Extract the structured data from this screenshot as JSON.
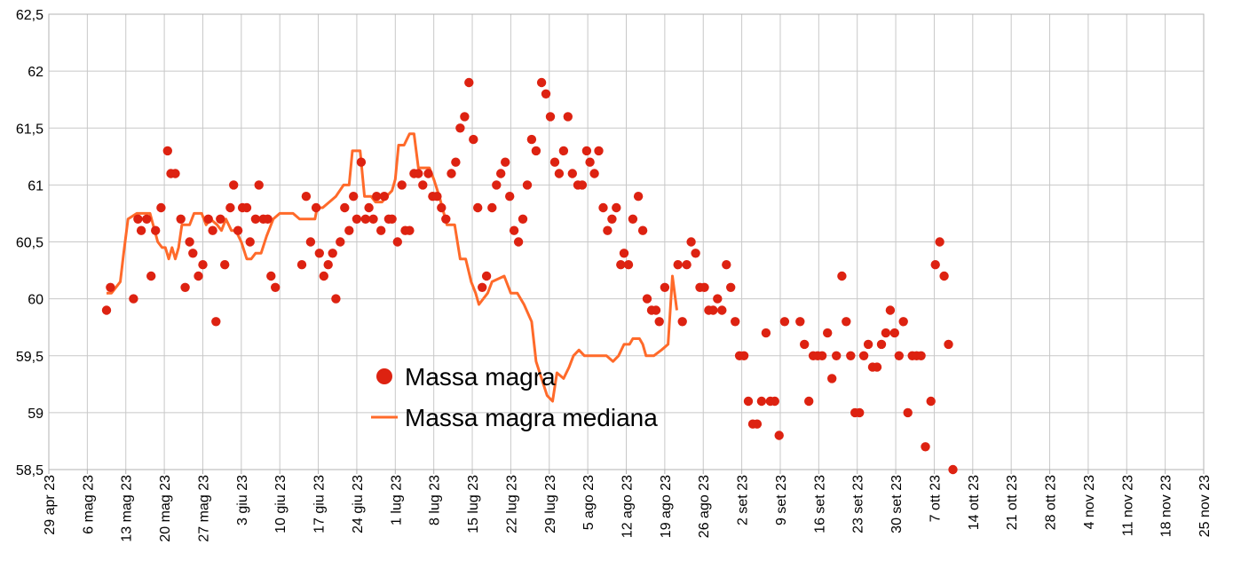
{
  "chart_data": {
    "type": "scatter",
    "title": "",
    "xlabel": "",
    "ylabel": "",
    "ylim": [
      58.5,
      62.5
    ],
    "yticks": [
      "58,5",
      "59",
      "59,5",
      "60",
      "60,5",
      "61",
      "61,5",
      "62",
      "62,5"
    ],
    "xlim_days": [
      0,
      210
    ],
    "xticks": [
      {
        "day": 0,
        "label": "29 apr 23"
      },
      {
        "day": 7,
        "label": "6 mag 23"
      },
      {
        "day": 14,
        "label": "13 mag 23"
      },
      {
        "day": 21,
        "label": "20 mag 23"
      },
      {
        "day": 28,
        "label": "27 mag 23"
      },
      {
        "day": 35,
        "label": "3 giu 23"
      },
      {
        "day": 42,
        "label": "10 giu 23"
      },
      {
        "day": 49,
        "label": "17 giu 23"
      },
      {
        "day": 56,
        "label": "24 giu 23"
      },
      {
        "day": 63,
        "label": "1 lug 23"
      },
      {
        "day": 70,
        "label": "8 lug 23"
      },
      {
        "day": 77,
        "label": "15 lug 23"
      },
      {
        "day": 84,
        "label": "22 lug 23"
      },
      {
        "day": 91,
        "label": "29 lug 23"
      },
      {
        "day": 98,
        "label": "5 ago 23"
      },
      {
        "day": 105,
        "label": "12 ago 23"
      },
      {
        "day": 112,
        "label": "19 ago 23"
      },
      {
        "day": 119,
        "label": "26 ago 23"
      },
      {
        "day": 126,
        "label": "2 set 23"
      },
      {
        "day": 133,
        "label": "9 set 23"
      },
      {
        "day": 140,
        "label": "16 set 23"
      },
      {
        "day": 147,
        "label": "23 set 23"
      },
      {
        "day": 154,
        "label": "30 set 23"
      },
      {
        "day": 161,
        "label": "7 ott 23"
      },
      {
        "day": 168,
        "label": "14 ott 23"
      },
      {
        "day": 175,
        "label": "21 ott 23"
      },
      {
        "day": 182,
        "label": "28 ott 23"
      },
      {
        "day": 189,
        "label": "4 nov 23"
      },
      {
        "day": 196,
        "label": "11 nov 23"
      },
      {
        "day": 203,
        "label": "18 nov 23"
      },
      {
        "day": 210,
        "label": "25 nov 23"
      }
    ],
    "legend": [
      {
        "name": "Massa magra",
        "kind": "marker",
        "color": "#dd2211"
      },
      {
        "name": "Massa magra mediana",
        "kind": "line",
        "color": "#ff6a2a"
      }
    ],
    "legend_position": "lower-middle",
    "series": [
      {
        "name": "Massa magra",
        "type": "scatter",
        "color": "#dd2211",
        "points": [
          [
            10.5,
            59.9
          ],
          [
            11.2,
            60.1
          ],
          [
            15.4,
            60.0
          ],
          [
            16.2,
            60.7
          ],
          [
            16.8,
            60.6
          ],
          [
            17.8,
            60.7
          ],
          [
            18.6,
            60.2
          ],
          [
            19.4,
            60.6
          ],
          [
            20.4,
            60.8
          ],
          [
            21.6,
            61.3
          ],
          [
            22.2,
            61.1
          ],
          [
            23.0,
            61.1
          ],
          [
            24.0,
            60.7
          ],
          [
            24.8,
            60.1
          ],
          [
            25.6,
            60.5
          ],
          [
            26.2,
            60.4
          ],
          [
            27.2,
            60.2
          ],
          [
            28.0,
            60.3
          ],
          [
            29.0,
            60.7
          ],
          [
            29.8,
            60.6
          ],
          [
            30.4,
            59.8
          ],
          [
            31.2,
            60.7
          ],
          [
            32.0,
            60.3
          ],
          [
            33.0,
            60.8
          ],
          [
            33.6,
            61.0
          ],
          [
            34.4,
            60.6
          ],
          [
            35.2,
            60.8
          ],
          [
            36.0,
            60.8
          ],
          [
            36.6,
            60.5
          ],
          [
            37.6,
            60.7
          ],
          [
            38.2,
            61.0
          ],
          [
            39.0,
            60.7
          ],
          [
            39.8,
            60.7
          ],
          [
            40.4,
            60.2
          ],
          [
            41.2,
            60.1
          ],
          [
            46.0,
            60.3
          ],
          [
            46.8,
            60.9
          ],
          [
            47.6,
            60.5
          ],
          [
            48.6,
            60.8
          ],
          [
            49.2,
            60.4
          ],
          [
            50.0,
            60.2
          ],
          [
            50.8,
            60.3
          ],
          [
            51.6,
            60.4
          ],
          [
            52.2,
            60.0
          ],
          [
            53.0,
            60.5
          ],
          [
            53.8,
            60.8
          ],
          [
            54.6,
            60.6
          ],
          [
            55.4,
            60.9
          ],
          [
            56.0,
            60.7
          ],
          [
            56.8,
            61.2
          ],
          [
            57.6,
            60.7
          ],
          [
            58.2,
            60.8
          ],
          [
            59.0,
            60.7
          ],
          [
            59.6,
            60.9
          ],
          [
            60.4,
            60.6
          ],
          [
            61.0,
            60.9
          ],
          [
            61.8,
            60.7
          ],
          [
            62.4,
            60.7
          ],
          [
            63.4,
            60.5
          ],
          [
            64.2,
            61.0
          ],
          [
            64.8,
            60.6
          ],
          [
            65.6,
            60.6
          ],
          [
            66.4,
            61.1
          ],
          [
            67.2,
            61.1
          ],
          [
            68.0,
            61.0
          ],
          [
            69.0,
            61.1
          ],
          [
            69.8,
            60.9
          ],
          [
            70.6,
            60.9
          ],
          [
            71.4,
            60.8
          ],
          [
            72.2,
            60.7
          ],
          [
            73.2,
            61.1
          ],
          [
            74.0,
            61.2
          ],
          [
            74.8,
            61.5
          ],
          [
            75.6,
            61.6
          ],
          [
            76.4,
            61.9
          ],
          [
            77.2,
            61.4
          ],
          [
            78.0,
            60.8
          ],
          [
            78.8,
            60.1
          ],
          [
            79.6,
            60.2
          ],
          [
            80.6,
            60.8
          ],
          [
            81.4,
            61.0
          ],
          [
            82.2,
            61.1
          ],
          [
            83.0,
            61.2
          ],
          [
            83.8,
            60.9
          ],
          [
            84.6,
            60.6
          ],
          [
            85.4,
            60.5
          ],
          [
            86.2,
            60.7
          ],
          [
            87.0,
            61.0
          ],
          [
            87.8,
            61.4
          ],
          [
            88.6,
            61.3
          ],
          [
            89.6,
            61.9
          ],
          [
            90.4,
            61.8
          ],
          [
            91.2,
            61.6
          ],
          [
            92.0,
            61.2
          ],
          [
            92.8,
            61.1
          ],
          [
            93.6,
            61.3
          ],
          [
            94.4,
            61.6
          ],
          [
            95.2,
            61.1
          ],
          [
            96.2,
            61.0
          ],
          [
            97.0,
            61.0
          ],
          [
            97.8,
            61.3
          ],
          [
            98.4,
            61.2
          ],
          [
            99.2,
            61.1
          ],
          [
            100.0,
            61.3
          ],
          [
            100.8,
            60.8
          ],
          [
            101.6,
            60.6
          ],
          [
            102.4,
            60.7
          ],
          [
            103.2,
            60.8
          ],
          [
            104.0,
            60.3
          ],
          [
            104.6,
            60.4
          ],
          [
            105.4,
            60.3
          ],
          [
            106.2,
            60.7
          ],
          [
            107.2,
            60.9
          ],
          [
            108.0,
            60.6
          ],
          [
            108.8,
            60.0
          ],
          [
            109.6,
            59.9
          ],
          [
            110.4,
            59.9
          ],
          [
            111.0,
            59.8
          ],
          [
            112.0,
            60.1
          ],
          [
            114.4,
            60.3
          ],
          [
            115.2,
            59.8
          ],
          [
            116.0,
            60.3
          ],
          [
            116.8,
            60.5
          ],
          [
            117.6,
            60.4
          ],
          [
            118.4,
            60.1
          ],
          [
            119.2,
            60.1
          ],
          [
            120.0,
            59.9
          ],
          [
            120.8,
            59.9
          ],
          [
            121.6,
            60.0
          ],
          [
            122.4,
            59.9
          ],
          [
            123.2,
            60.3
          ],
          [
            124.0,
            60.1
          ],
          [
            124.8,
            59.8
          ],
          [
            125.6,
            59.5
          ],
          [
            126.4,
            59.5
          ],
          [
            127.2,
            59.1
          ],
          [
            128.0,
            58.9
          ],
          [
            128.8,
            58.9
          ],
          [
            129.6,
            59.1
          ],
          [
            130.4,
            59.7
          ],
          [
            131.2,
            59.1
          ],
          [
            132.0,
            59.1
          ],
          [
            132.8,
            58.8
          ],
          [
            133.8,
            59.8
          ],
          [
            136.6,
            59.8
          ],
          [
            137.4,
            59.6
          ],
          [
            138.2,
            59.1
          ],
          [
            139.0,
            59.5
          ],
          [
            139.8,
            59.5
          ],
          [
            140.6,
            59.5
          ],
          [
            141.6,
            59.7
          ],
          [
            142.4,
            59.3
          ],
          [
            143.2,
            59.5
          ],
          [
            144.2,
            60.2
          ],
          [
            145.0,
            59.8
          ],
          [
            145.8,
            59.5
          ],
          [
            146.6,
            59.0
          ],
          [
            147.4,
            59.0
          ],
          [
            148.2,
            59.5
          ],
          [
            149.0,
            59.6
          ],
          [
            149.8,
            59.4
          ],
          [
            150.6,
            59.4
          ],
          [
            151.4,
            59.6
          ],
          [
            152.2,
            59.7
          ],
          [
            153.0,
            59.9
          ],
          [
            153.8,
            59.7
          ],
          [
            154.6,
            59.5
          ],
          [
            155.4,
            59.8
          ],
          [
            156.2,
            59.0
          ],
          [
            157.0,
            59.5
          ],
          [
            157.8,
            59.5
          ],
          [
            158.6,
            59.5
          ],
          [
            159.4,
            58.7
          ],
          [
            160.4,
            59.1
          ],
          [
            161.2,
            60.3
          ],
          [
            162.0,
            60.5
          ],
          [
            162.8,
            60.2
          ],
          [
            163.6,
            59.6
          ],
          [
            164.4,
            58.5
          ]
        ]
      },
      {
        "name": "Massa magra mediana",
        "type": "line",
        "color": "#ff6a2a",
        "points": [
          [
            10.5,
            60.05
          ],
          [
            11.4,
            60.05
          ],
          [
            13.0,
            60.15
          ],
          [
            13.6,
            60.4
          ],
          [
            14.4,
            60.7
          ],
          [
            16.0,
            60.75
          ],
          [
            17.0,
            60.75
          ],
          [
            18.4,
            60.75
          ],
          [
            19.8,
            60.5
          ],
          [
            20.6,
            60.45
          ],
          [
            21.2,
            60.45
          ],
          [
            21.8,
            60.35
          ],
          [
            22.4,
            60.45
          ],
          [
            23.0,
            60.35
          ],
          [
            23.6,
            60.45
          ],
          [
            24.2,
            60.65
          ],
          [
            25.6,
            60.65
          ],
          [
            26.4,
            60.75
          ],
          [
            27.8,
            60.75
          ],
          [
            28.6,
            60.65
          ],
          [
            29.4,
            60.7
          ],
          [
            30.6,
            60.65
          ],
          [
            31.4,
            60.6
          ],
          [
            32.2,
            60.7
          ],
          [
            33.2,
            60.6
          ],
          [
            34.0,
            60.6
          ],
          [
            35.0,
            60.5
          ],
          [
            36.0,
            60.35
          ],
          [
            36.8,
            60.35
          ],
          [
            37.6,
            60.4
          ],
          [
            38.6,
            60.4
          ],
          [
            39.6,
            60.55
          ],
          [
            40.8,
            60.7
          ],
          [
            42.0,
            60.75
          ],
          [
            44.4,
            60.75
          ],
          [
            45.6,
            60.7
          ],
          [
            47.4,
            60.7
          ],
          [
            48.4,
            60.7
          ],
          [
            48.8,
            60.8
          ],
          [
            49.8,
            60.8
          ],
          [
            51.0,
            60.85
          ],
          [
            52.2,
            60.9
          ],
          [
            53.6,
            61.0
          ],
          [
            54.6,
            61.0
          ],
          [
            55.2,
            61.3
          ],
          [
            56.6,
            61.3
          ],
          [
            57.4,
            60.9
          ],
          [
            58.6,
            60.9
          ],
          [
            59.4,
            60.85
          ],
          [
            60.6,
            60.85
          ],
          [
            61.4,
            60.9
          ],
          [
            62.4,
            60.95
          ],
          [
            63.0,
            61.05
          ],
          [
            63.6,
            61.35
          ],
          [
            64.6,
            61.35
          ],
          [
            65.6,
            61.45
          ],
          [
            66.4,
            61.45
          ],
          [
            67.2,
            61.15
          ],
          [
            69.2,
            61.15
          ],
          [
            70.0,
            61.05
          ],
          [
            71.0,
            60.9
          ],
          [
            72.4,
            60.65
          ],
          [
            73.8,
            60.65
          ],
          [
            74.8,
            60.35
          ],
          [
            75.8,
            60.35
          ],
          [
            76.8,
            60.15
          ],
          [
            77.6,
            60.05
          ],
          [
            78.2,
            59.95
          ],
          [
            79.8,
            60.05
          ],
          [
            80.6,
            60.15
          ],
          [
            82.8,
            60.2
          ],
          [
            84.0,
            60.05
          ],
          [
            85.2,
            60.05
          ],
          [
            86.4,
            59.95
          ],
          [
            87.8,
            59.8
          ],
          [
            88.6,
            59.45
          ],
          [
            89.6,
            59.3
          ],
          [
            90.6,
            59.15
          ],
          [
            91.6,
            59.1
          ],
          [
            92.4,
            59.35
          ],
          [
            93.6,
            59.3
          ],
          [
            94.6,
            59.4
          ],
          [
            95.4,
            59.5
          ],
          [
            96.4,
            59.55
          ],
          [
            97.4,
            59.5
          ],
          [
            99.0,
            59.5
          ],
          [
            100.2,
            59.5
          ],
          [
            101.4,
            59.5
          ],
          [
            102.6,
            59.45
          ],
          [
            103.6,
            59.5
          ],
          [
            104.6,
            59.6
          ],
          [
            105.6,
            59.6
          ],
          [
            106.2,
            59.65
          ],
          [
            107.4,
            59.65
          ],
          [
            108.0,
            59.6
          ],
          [
            108.6,
            59.5
          ],
          [
            110.0,
            59.5
          ],
          [
            111.4,
            59.55
          ],
          [
            112.6,
            59.6
          ],
          [
            113.4,
            60.2
          ],
          [
            114.2,
            59.9
          ]
        ]
      }
    ]
  }
}
